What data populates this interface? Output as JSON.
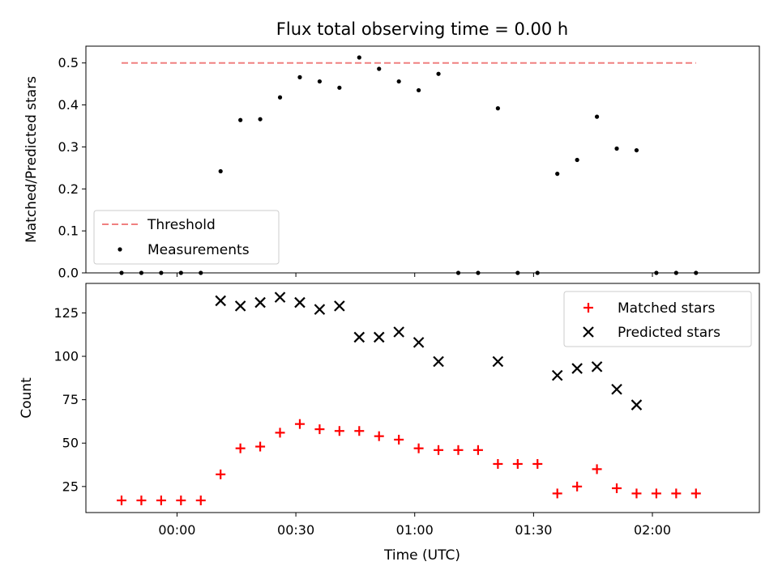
{
  "chart_data": [
    {
      "type": "scatter",
      "title": "Flux total observing time = 0.00 h",
      "xlabel": "",
      "ylabel": "Matched/Predicted stars",
      "ylim": [
        0,
        0.54
      ],
      "yticks": [
        "0.0",
        "0.1",
        "0.2",
        "0.3",
        "0.4",
        "0.5"
      ],
      "ytick_values": [
        0.0,
        0.1,
        0.2,
        0.3,
        0.4,
        0.5
      ],
      "legend_position": "lower-left",
      "threshold": {
        "name": "Threshold",
        "value": 0.5,
        "x_range": [
          "23:46",
          "02:11"
        ],
        "color": "#f08080"
      },
      "measurements": {
        "name": "Measurements",
        "color": "#000000",
        "points": [
          {
            "x": "23:46",
            "y": 0.0
          },
          {
            "x": "23:51",
            "y": 0.0
          },
          {
            "x": "23:56",
            "y": 0.0
          },
          {
            "x": "00:01",
            "y": 0.0
          },
          {
            "x": "00:06",
            "y": 0.0
          },
          {
            "x": "00:11",
            "y": 0.242
          },
          {
            "x": "00:16",
            "y": 0.364
          },
          {
            "x": "00:21",
            "y": 0.366
          },
          {
            "x": "00:26",
            "y": 0.418
          },
          {
            "x": "00:31",
            "y": 0.466
          },
          {
            "x": "00:36",
            "y": 0.456
          },
          {
            "x": "00:41",
            "y": 0.441
          },
          {
            "x": "00:46",
            "y": 0.513
          },
          {
            "x": "00:51",
            "y": 0.486
          },
          {
            "x": "00:56",
            "y": 0.456
          },
          {
            "x": "01:01",
            "y": 0.435
          },
          {
            "x": "01:06",
            "y": 0.474
          },
          {
            "x": "01:11",
            "y": 0.0
          },
          {
            "x": "01:16",
            "y": 0.0
          },
          {
            "x": "01:21",
            "y": 0.392
          },
          {
            "x": "01:26",
            "y": 0.0
          },
          {
            "x": "01:31",
            "y": 0.0
          },
          {
            "x": "01:36",
            "y": 0.236
          },
          {
            "x": "01:41",
            "y": 0.269
          },
          {
            "x": "01:46",
            "y": 0.372
          },
          {
            "x": "01:51",
            "y": 0.296
          },
          {
            "x": "01:56",
            "y": 0.292
          },
          {
            "x": "02:01",
            "y": 0.0
          },
          {
            "x": "02:06",
            "y": 0.0
          },
          {
            "x": "02:11",
            "y": 0.0
          }
        ]
      }
    },
    {
      "type": "scatter",
      "title": "",
      "xlabel": "Time (UTC)",
      "ylabel": "Count",
      "ylim": [
        10,
        142
      ],
      "yticks": [
        "25",
        "50",
        "75",
        "100",
        "125"
      ],
      "ytick_values": [
        25,
        50,
        75,
        100,
        125
      ],
      "xlim": [
        "23:37",
        "02:27"
      ],
      "xticks": [
        "00:00",
        "00:30",
        "01:00",
        "01:30",
        "02:00"
      ],
      "legend_position": "upper-right",
      "series": [
        {
          "name": "Matched stars",
          "marker": "plus",
          "color": "#ff0000",
          "points": [
            {
              "x": "23:46",
              "y": 17
            },
            {
              "x": "23:51",
              "y": 17
            },
            {
              "x": "23:56",
              "y": 17
            },
            {
              "x": "00:01",
              "y": 17
            },
            {
              "x": "00:06",
              "y": 17
            },
            {
              "x": "00:11",
              "y": 32
            },
            {
              "x": "00:16",
              "y": 47
            },
            {
              "x": "00:21",
              "y": 48
            },
            {
              "x": "00:26",
              "y": 56
            },
            {
              "x": "00:31",
              "y": 61
            },
            {
              "x": "00:36",
              "y": 58
            },
            {
              "x": "00:41",
              "y": 57
            },
            {
              "x": "00:46",
              "y": 57
            },
            {
              "x": "00:51",
              "y": 54
            },
            {
              "x": "00:56",
              "y": 52
            },
            {
              "x": "01:01",
              "y": 47
            },
            {
              "x": "01:06",
              "y": 46
            },
            {
              "x": "01:11",
              "y": 46
            },
            {
              "x": "01:16",
              "y": 46
            },
            {
              "x": "01:21",
              "y": 38
            },
            {
              "x": "01:26",
              "y": 38
            },
            {
              "x": "01:31",
              "y": 38
            },
            {
              "x": "01:36",
              "y": 21
            },
            {
              "x": "01:41",
              "y": 25
            },
            {
              "x": "01:46",
              "y": 35
            },
            {
              "x": "01:51",
              "y": 24
            },
            {
              "x": "01:56",
              "y": 21
            },
            {
              "x": "02:01",
              "y": 21
            },
            {
              "x": "02:06",
              "y": 21
            },
            {
              "x": "02:11",
              "y": 21
            }
          ]
        },
        {
          "name": "Predicted stars",
          "marker": "x",
          "color": "#000000",
          "points": [
            {
              "x": "00:11",
              "y": 132
            },
            {
              "x": "00:16",
              "y": 129
            },
            {
              "x": "00:21",
              "y": 131
            },
            {
              "x": "00:26",
              "y": 134
            },
            {
              "x": "00:31",
              "y": 131
            },
            {
              "x": "00:36",
              "y": 127
            },
            {
              "x": "00:41",
              "y": 129
            },
            {
              "x": "00:46",
              "y": 111
            },
            {
              "x": "00:51",
              "y": 111
            },
            {
              "x": "00:56",
              "y": 114
            },
            {
              "x": "01:01",
              "y": 108
            },
            {
              "x": "01:06",
              "y": 97
            },
            {
              "x": "01:21",
              "y": 97
            },
            {
              "x": "01:36",
              "y": 89
            },
            {
              "x": "01:41",
              "y": 93
            },
            {
              "x": "01:46",
              "y": 94
            },
            {
              "x": "01:51",
              "y": 81
            },
            {
              "x": "01:56",
              "y": 72
            }
          ]
        }
      ]
    }
  ]
}
